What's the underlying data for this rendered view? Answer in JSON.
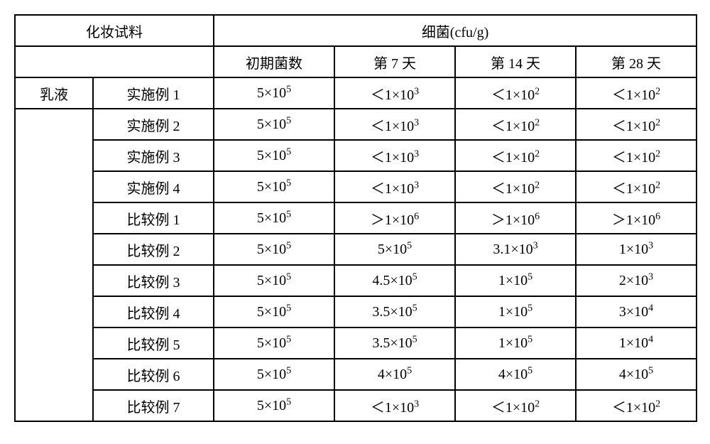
{
  "type": "table",
  "background_color": "#ffffff",
  "border_color": "#000000",
  "font_family": "SimSun",
  "font_size_pt": 15,
  "header": {
    "left_group": "化妆试料",
    "right_group": "细菌(cfu/g)",
    "sub": [
      "初期菌数",
      "第 7 天",
      "第 14 天",
      "第 28 天"
    ]
  },
  "category_label": "乳液",
  "rows": [
    {
      "example_prefix": "实施例",
      "example_num": "1",
      "initial_base": "5",
      "initial_exp": "5",
      "d7_prefix": "＜",
      "d7_base": "1",
      "d7_exp": "3",
      "d14_prefix": "＜",
      "d14_base": "1",
      "d14_exp": "2",
      "d28_prefix": "＜",
      "d28_base": "1",
      "d28_exp": "2"
    },
    {
      "example_prefix": "实施例",
      "example_num": "2",
      "initial_base": "5",
      "initial_exp": "5",
      "d7_prefix": "＜",
      "d7_base": "1",
      "d7_exp": "3",
      "d14_prefix": "＜",
      "d14_base": "1",
      "d14_exp": "2",
      "d28_prefix": "＜",
      "d28_base": "1",
      "d28_exp": "2"
    },
    {
      "example_prefix": "实施例",
      "example_num": "3",
      "initial_base": "5",
      "initial_exp": "5",
      "d7_prefix": "＜",
      "d7_base": "1",
      "d7_exp": "3",
      "d14_prefix": "＜",
      "d14_base": "1",
      "d14_exp": "2",
      "d28_prefix": "＜",
      "d28_base": "1",
      "d28_exp": "2"
    },
    {
      "example_prefix": "实施例",
      "example_num": "4",
      "initial_base": "5",
      "initial_exp": "5",
      "d7_prefix": "＜",
      "d7_base": "1",
      "d7_exp": "3",
      "d14_prefix": "＜",
      "d14_base": "1",
      "d14_exp": "2",
      "d28_prefix": "＜",
      "d28_base": "1",
      "d28_exp": "2"
    },
    {
      "example_prefix": "比较例",
      "example_num": "1",
      "initial_base": "5",
      "initial_exp": "5",
      "d7_prefix": "＞",
      "d7_base": "1",
      "d7_exp": "6",
      "d14_prefix": "＞",
      "d14_base": "1",
      "d14_exp": "6",
      "d28_prefix": "＞",
      "d28_base": "1",
      "d28_exp": "6"
    },
    {
      "example_prefix": "比较例",
      "example_num": "2",
      "initial_base": "5",
      "initial_exp": "5",
      "d7_prefix": "",
      "d7_base": "5",
      "d7_exp": "5",
      "d14_prefix": "",
      "d14_base": "3.1",
      "d14_exp": "3",
      "d28_prefix": "",
      "d28_base": "1",
      "d28_exp": "3"
    },
    {
      "example_prefix": "比较例",
      "example_num": "3",
      "initial_base": "5",
      "initial_exp": "5",
      "d7_prefix": "",
      "d7_base": "4.5",
      "d7_exp": "5",
      "d14_prefix": "",
      "d14_base": "1",
      "d14_exp": "5",
      "d28_prefix": "",
      "d28_base": "2",
      "d28_exp": "3"
    },
    {
      "example_prefix": "比较例",
      "example_num": "4",
      "initial_base": "5",
      "initial_exp": "5",
      "d7_prefix": "",
      "d7_base": "3.5",
      "d7_exp": "5",
      "d14_prefix": "",
      "d14_base": "1",
      "d14_exp": "5",
      "d28_prefix": "",
      "d28_base": "3",
      "d28_exp": "4"
    },
    {
      "example_prefix": "比较例",
      "example_num": "5",
      "initial_base": "5",
      "initial_exp": "5",
      "d7_prefix": "",
      "d7_base": "3.5",
      "d7_exp": "5",
      "d14_prefix": "",
      "d14_base": "1",
      "d14_exp": "5",
      "d28_prefix": "",
      "d28_base": "1",
      "d28_exp": "4"
    },
    {
      "example_prefix": "比较例",
      "example_num": "6",
      "initial_base": "5",
      "initial_exp": "5",
      "d7_prefix": "",
      "d7_base": "4",
      "d7_exp": "5",
      "d14_prefix": "",
      "d14_base": "4",
      "d14_exp": "5",
      "d28_prefix": "",
      "d28_base": "4",
      "d28_exp": "5"
    },
    {
      "example_prefix": "比较例",
      "example_num": "7",
      "initial_base": "5",
      "initial_exp": "5",
      "d7_prefix": "＜",
      "d7_base": "1",
      "d7_exp": "3",
      "d14_prefix": "＜",
      "d14_base": "1",
      "d14_exp": "2",
      "d28_prefix": "＜",
      "d28_base": "1",
      "d28_exp": "2"
    }
  ]
}
